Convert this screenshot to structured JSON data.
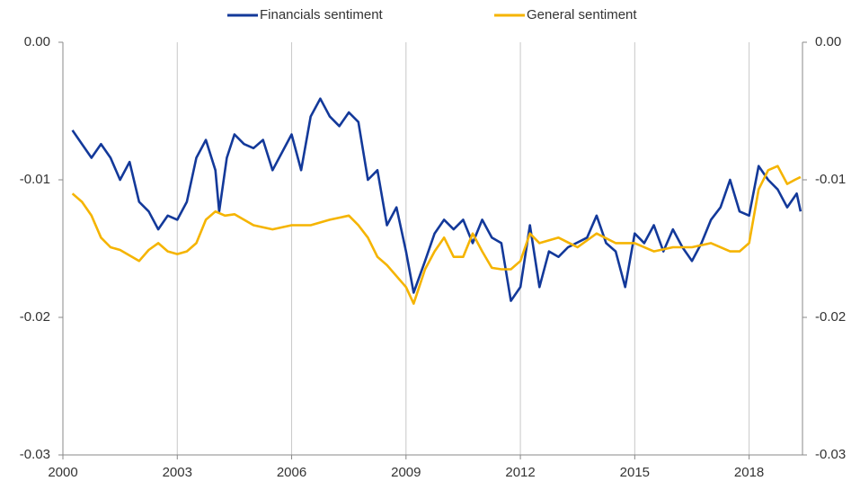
{
  "chart_data": {
    "type": "line",
    "xlim": [
      2000,
      2019.4
    ],
    "xticks": [
      2000,
      2003,
      2006,
      2009,
      2012,
      2015,
      2018
    ],
    "ylim": [
      -0.03,
      0
    ],
    "yticks": [
      {
        "value": 0,
        "label": "0.00"
      },
      -0.01,
      -0.02,
      -0.03
    ],
    "y2lim": [
      -0.03,
      0
    ],
    "y2ticks": [
      {
        "value": 0,
        "label": "0.00"
      },
      -0.01,
      -0.02,
      -0.03
    ],
    "grid": true,
    "legend": "top",
    "series": [
      {
        "name": "Financials sentiment",
        "color": "#13399a",
        "x": [
          2000.25,
          2000.5,
          2000.75,
          2001.0,
          2001.25,
          2001.5,
          2001.75,
          2002.0,
          2002.25,
          2002.5,
          2002.75,
          2003.0,
          2003.25,
          2003.5,
          2003.75,
          2004.0,
          2004.1,
          2004.3,
          2004.5,
          2004.75,
          2005.0,
          2005.25,
          2005.5,
          2005.75,
          2006.0,
          2006.25,
          2006.5,
          2006.75,
          2007.0,
          2007.25,
          2007.5,
          2007.75,
          2008.0,
          2008.25,
          2008.5,
          2008.75,
          2009.0,
          2009.2,
          2009.5,
          2009.75,
          2010.0,
          2010.25,
          2010.5,
          2010.75,
          2011.0,
          2011.25,
          2011.5,
          2011.75,
          2012.0,
          2012.25,
          2012.5,
          2012.75,
          2013.0,
          2013.25,
          2013.75,
          2014.0,
          2014.25,
          2014.5,
          2014.75,
          2015.0,
          2015.25,
          2015.5,
          2015.75,
          2016.0,
          2016.25,
          2016.5,
          2016.75,
          2017.0,
          2017.25,
          2017.5,
          2017.75,
          2018.0,
          2018.25,
          2018.5,
          2018.75,
          2019.0,
          2019.25,
          2019.35
        ],
        "values": [
          -0.0064,
          -0.0074,
          -0.0084,
          -0.0074,
          -0.0084,
          -0.01,
          -0.0087,
          -0.0116,
          -0.0123,
          -0.0136,
          -0.0126,
          -0.0129,
          -0.0116,
          -0.0084,
          -0.0071,
          -0.0093,
          -0.0123,
          -0.0084,
          -0.0067,
          -0.0074,
          -0.0077,
          -0.0071,
          -0.0093,
          -0.008,
          -0.0067,
          -0.0093,
          -0.0054,
          -0.0041,
          -0.0054,
          -0.0061,
          -0.0051,
          -0.0058,
          -0.01,
          -0.0093,
          -0.0133,
          -0.012,
          -0.0152,
          -0.0182,
          -0.0159,
          -0.0139,
          -0.0129,
          -0.0136,
          -0.0129,
          -0.0146,
          -0.0129,
          -0.0142,
          -0.0146,
          -0.0188,
          -0.0178,
          -0.0133,
          -0.0178,
          -0.0152,
          -0.0156,
          -0.0149,
          -0.0142,
          -0.0126,
          -0.0146,
          -0.0152,
          -0.0178,
          -0.0139,
          -0.0146,
          -0.0133,
          -0.0152,
          -0.0136,
          -0.0149,
          -0.0159,
          -0.0146,
          -0.0129,
          -0.012,
          -0.01,
          -0.0123,
          -0.0126,
          -0.009,
          -0.01,
          -0.0107,
          -0.012,
          -0.011,
          -0.0123
        ]
      },
      {
        "name": "General sentiment",
        "color": "#f5b400",
        "x": [
          2000.25,
          2000.5,
          2000.75,
          2001.0,
          2001.25,
          2001.5,
          2002.0,
          2002.25,
          2002.5,
          2002.75,
          2003.0,
          2003.25,
          2003.5,
          2003.75,
          2004.0,
          2004.25,
          2004.5,
          2004.75,
          2005.0,
          2005.5,
          2006.0,
          2006.5,
          2007.0,
          2007.5,
          2007.75,
          2008.0,
          2008.25,
          2008.5,
          2009.0,
          2009.2,
          2009.5,
          2009.75,
          2010.0,
          2010.25,
          2010.5,
          2010.75,
          2011.0,
          2011.25,
          2011.5,
          2011.75,
          2012.0,
          2012.25,
          2012.5,
          2013.0,
          2013.5,
          2014.0,
          2014.5,
          2015.0,
          2015.5,
          2016.0,
          2016.5,
          2017.0,
          2017.5,
          2017.75,
          2018.0,
          2018.25,
          2018.5,
          2018.75,
          2019.0,
          2019.2,
          2019.35
        ],
        "values": [
          -0.011,
          -0.0116,
          -0.0126,
          -0.0142,
          -0.0149,
          -0.0151,
          -0.0159,
          -0.0151,
          -0.0146,
          -0.0152,
          -0.0154,
          -0.0152,
          -0.0146,
          -0.0129,
          -0.0123,
          -0.0126,
          -0.0125,
          -0.0129,
          -0.0133,
          -0.0136,
          -0.0133,
          -0.0133,
          -0.0129,
          -0.0126,
          -0.0133,
          -0.0142,
          -0.0156,
          -0.0162,
          -0.0178,
          -0.019,
          -0.0165,
          -0.0152,
          -0.0142,
          -0.0156,
          -0.0156,
          -0.0139,
          -0.0152,
          -0.0164,
          -0.0165,
          -0.0165,
          -0.0159,
          -0.0139,
          -0.0146,
          -0.0142,
          -0.0149,
          -0.0139,
          -0.0146,
          -0.0146,
          -0.0152,
          -0.0149,
          -0.0149,
          -0.0146,
          -0.0152,
          -0.0152,
          -0.0146,
          -0.0107,
          -0.0093,
          -0.009,
          -0.0103,
          -0.01,
          -0.0098
        ]
      }
    ]
  }
}
